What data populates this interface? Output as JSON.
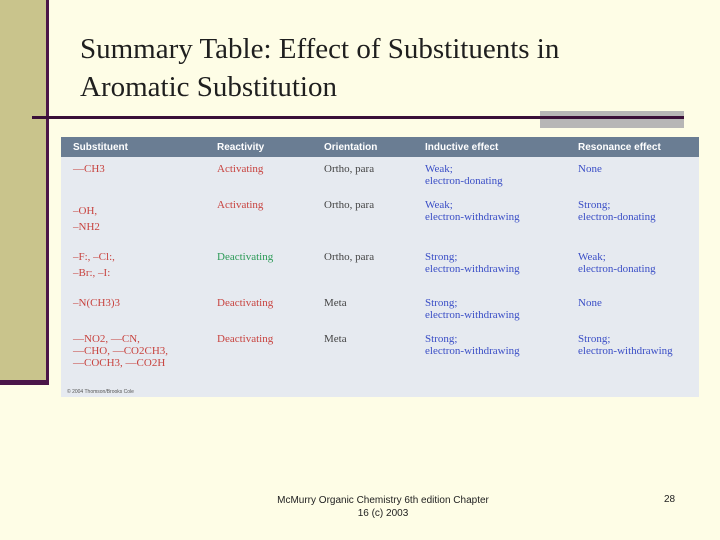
{
  "slide": {
    "title_line1": "Summary Table: Effect of Substituents in",
    "title_line2": "Aromatic Substitution",
    "footer_line1": "McMurry Organic Chemistry 6th edition Chapter",
    "footer_line2": "16 (c) 2003",
    "page_number": "28"
  },
  "table": {
    "headers": [
      "Substituent",
      "Reactivity",
      "Orientation",
      "Inductive effect",
      "Resonance effect"
    ],
    "rows": [
      {
        "substituent": [
          "—CH3"
        ],
        "reactivity": "Activating",
        "orientation": "Ortho, para",
        "inductive": [
          "Weak;",
          "electron-donating"
        ],
        "resonance": [
          "None"
        ]
      },
      {
        "substituent": [
          "–OH,",
          "–NH2"
        ],
        "reactivity": "Activating",
        "orientation": "Ortho, para",
        "inductive": [
          "Weak;",
          "electron-withdrawing"
        ],
        "resonance": [
          "Strong;",
          "electron-donating"
        ]
      },
      {
        "substituent": [
          "–F:, –Cl:,",
          "–Br:, –I:"
        ],
        "reactivity": "Deactivating",
        "orientation": "Ortho, para",
        "inductive": [
          "Strong;",
          "electron-withdrawing"
        ],
        "resonance": [
          "Weak;",
          "electron-donating"
        ]
      },
      {
        "substituent": [
          "–N(CH3)3"
        ],
        "reactivity": "Deactivating",
        "orientation": "Meta",
        "inductive": [
          "Strong;",
          "electron-withdrawing"
        ],
        "resonance": [
          "None"
        ]
      },
      {
        "substituent": [
          "—NO2, —CN,",
          "—CHO, —CO2CH3,",
          "—COCH3, —CO2H"
        ],
        "reactivity": "Deactivating",
        "orientation": "Meta",
        "inductive": [
          "Strong;",
          "electron-withdrawing"
        ],
        "resonance": [
          "Strong;",
          "electron-withdrawing"
        ]
      }
    ],
    "copyright": "© 2004 Thomson/Brooks Cole"
  }
}
